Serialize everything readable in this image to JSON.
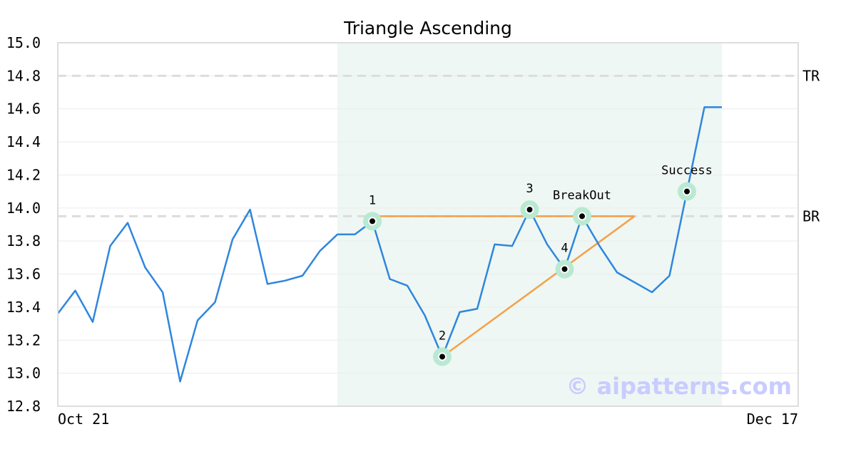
{
  "chart_data": {
    "type": "line",
    "title": "Triangle Ascending",
    "xlabel": "",
    "ylabel": "",
    "ylim": [
      12.8,
      15.0
    ],
    "yticks": [
      "15.0",
      "14.8",
      "14.6",
      "14.4",
      "14.2",
      "14.0",
      "13.8",
      "13.6",
      "13.4",
      "13.2",
      "13.0",
      "12.8"
    ],
    "x_tick_labels": [
      "Oct 21",
      "Dec 17"
    ],
    "grid": true,
    "series": [
      {
        "color": "#2e86de",
        "values": [
          13.36,
          13.5,
          13.31,
          13.77,
          13.91,
          13.64,
          13.49,
          12.95,
          13.32,
          13.43,
          13.81,
          13.99,
          13.54,
          13.56,
          13.59,
          13.74,
          13.84,
          13.84,
          13.92,
          13.57,
          13.53,
          13.35,
          13.1,
          13.37,
          13.39,
          13.78,
          13.77,
          13.99,
          13.78,
          13.63,
          13.95,
          13.77,
          13.61,
          13.55,
          13.49,
          13.59,
          14.1,
          14.61,
          14.61
        ]
      }
    ],
    "levels": [
      {
        "label": "TR",
        "value": 14.8
      },
      {
        "label": "BR",
        "value": 13.95
      }
    ],
    "pattern_window": {
      "start_index": 16,
      "end_index": 38
    },
    "pattern_lines": [
      {
        "from_index": 18,
        "from_value": 13.95,
        "to_index": 33,
        "to_value": 13.95
      },
      {
        "from_index": 22,
        "from_value": 13.1,
        "to_index": 33,
        "to_value": 13.95
      }
    ],
    "pattern_color": "#f4a048",
    "annotations": [
      {
        "label": "1",
        "index": 18,
        "value": 13.92
      },
      {
        "label": "2",
        "index": 22,
        "value": 13.1
      },
      {
        "label": "3",
        "index": 27,
        "value": 13.99
      },
      {
        "label": "4",
        "index": 29,
        "value": 13.63
      },
      {
        "label": "BreakOut",
        "index": 30,
        "value": 13.95
      },
      {
        "label": "Success",
        "index": 36,
        "value": 14.1
      }
    ],
    "watermark": "© aipatterns.com"
  }
}
